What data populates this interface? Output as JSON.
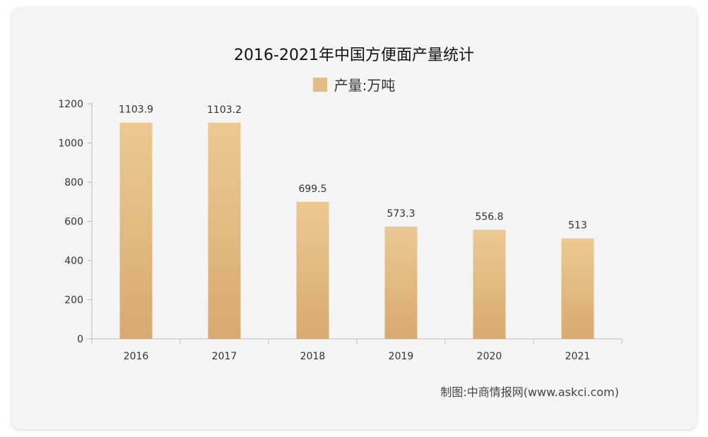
{
  "chart_data": {
    "type": "bar",
    "title": "2016-2021年中国方便面产量统计",
    "legend": [
      {
        "name": "产量:万吨",
        "color": "#e3bd86"
      }
    ],
    "categories": [
      "2016",
      "2017",
      "2018",
      "2019",
      "2020",
      "2021"
    ],
    "series": [
      {
        "name": "产量:万吨",
        "values": [
          1103.9,
          1103.2,
          699.5,
          573.3,
          556.8,
          513
        ]
      }
    ],
    "data_labels": [
      "1103.9",
      "1103.2",
      "699.5",
      "573.3",
      "556.8",
      "513"
    ],
    "ylim": [
      0,
      1200
    ],
    "yticks": [
      "0",
      "200",
      "400",
      "600",
      "800",
      "1000",
      "1200"
    ],
    "legend_position": "top-center",
    "grid": false,
    "bar_color_top": "#ecc992",
    "bar_color_bottom": "#d7aa71"
  },
  "source_note": "制图:中商情报网(www.askci.com)"
}
